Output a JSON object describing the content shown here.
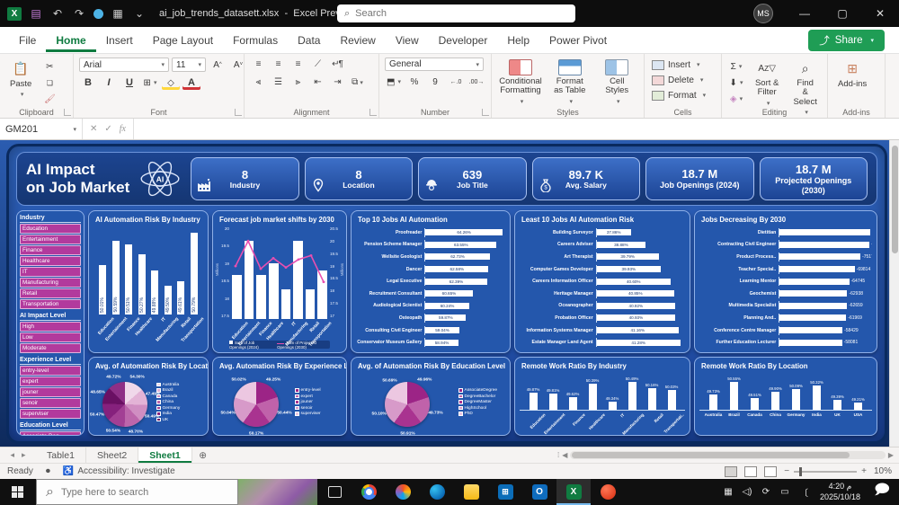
{
  "window": {
    "doc_title": "ai_job_trends_datasett.xlsx",
    "separator": "-",
    "app_title": "Excel Preview",
    "search_placeholder": "Search",
    "avatar_initials": "MS",
    "minimize": "—",
    "maximize": "▢",
    "close": "✕"
  },
  "menu": {
    "tabs": [
      "File",
      "Home",
      "Insert",
      "Page Layout",
      "Formulas",
      "Data",
      "Review",
      "View",
      "Developer",
      "Help",
      "Power Pivot"
    ],
    "active_tab": "Home",
    "share_label": "Share"
  },
  "ribbon": {
    "groups": [
      "Clipboard",
      "Font",
      "Alignment",
      "Number",
      "Styles",
      "Cells",
      "Editing",
      "Add-ins"
    ],
    "paste_label": "Paste",
    "font_name": "Arial",
    "font_size": "11",
    "bold_label": "B",
    "italic_label": "I",
    "underline_label": "U",
    "font_color_label": "A",
    "fill_label": "◇",
    "number_format": "General",
    "percent_label": "%",
    "comma_label": "9",
    "styles_buttons": [
      "Conditional Formatting",
      "Format as Table",
      "Cell Styles"
    ],
    "cells_buttons": [
      "Insert",
      "Delete",
      "Format"
    ],
    "autosum_label": "Σ",
    "editing_buttons": [
      "Sort & Filter",
      "Find & Select"
    ],
    "addins_label": "Add-ins"
  },
  "formula_bar": {
    "cell_ref": "GM201",
    "fx_label": "fx",
    "formula_value": ""
  },
  "dashboard": {
    "title_line1": "AI Impact",
    "title_line2": "on Job Market",
    "logo_text": "AI",
    "kpis": [
      {
        "value": "8",
        "label": "Industry",
        "icon": "industry-icon"
      },
      {
        "value": "8",
        "label": "Location",
        "icon": "location-icon"
      },
      {
        "value": "639",
        "label": "Job Title",
        "icon": "job-title-icon"
      },
      {
        "value": "89.7 K",
        "label": "Avg. Salary",
        "icon": "salary-icon"
      },
      {
        "value": "18.7 M",
        "label": "Job Openings (2024)",
        "icon": ""
      },
      {
        "value": "18.7 M",
        "label": "Projected Openings (2030)",
        "icon": ""
      }
    ],
    "slicers": [
      {
        "title": "Industry",
        "items": [
          "Education",
          "Entertainment",
          "Finance",
          "Healthcare",
          "IT",
          "Manufacturing",
          "Retail",
          "Transportation"
        ]
      },
      {
        "title": "AI Impact Level",
        "items": [
          "High",
          "Low",
          "Moderate"
        ]
      },
      {
        "title": "Experience Level",
        "items": [
          "entry-level",
          "expert",
          "jouner",
          "senoir",
          "superviser"
        ]
      },
      {
        "title": "Education Level",
        "items": [
          "Associate Deg...",
          "DegreeBachelor",
          "DegreeMaster",
          "High School",
          "PhD"
        ]
      }
    ]
  },
  "chart_data": [
    {
      "type": "bar",
      "title": "AI Automation Risk By Industry",
      "categories": [
        "Education",
        "Entertainment",
        "Finance",
        "Healthcare",
        "IT",
        "Manufacturing",
        "Retail",
        "Transportation"
      ],
      "values": [
        50.01,
        50.59,
        50.51,
        50.27,
        49.88,
        49.5,
        49.61,
        50.79
      ],
      "scale": {
        "min": 48.8,
        "max": 50.95
      },
      "bar_color": "#ffffff"
    },
    {
      "type": "combo",
      "title": "Forecast job market shifts by 2030",
      "categories": [
        "Education",
        "Entertainment",
        "Finance",
        "Healthcare",
        "IT",
        "Manufacturing",
        "Retail",
        "Transportation"
      ],
      "series": [
        {
          "name": "Sum of Job Openings (2024)",
          "kind": "bar",
          "values": [
            18.7,
            19.6,
            18.7,
            19.0,
            18.3,
            19.6,
            18.3,
            18.8
          ]
        },
        {
          "name": "Sum of Projected Openings (2030)",
          "kind": "line",
          "values": [
            19.0,
            19.95,
            18.9,
            19.3,
            18.95,
            19.25,
            19.4,
            18.4
          ]
        }
      ],
      "left_axis": {
        "label": "Millions",
        "ticks": [
          "20",
          "19.5",
          "19",
          "18.5",
          "18",
          "17.5"
        ],
        "min": 17.5,
        "max": 20
      },
      "right_axis": {
        "label": "Millions",
        "ticks": [
          "20.5",
          "20",
          "19.5",
          "19",
          "18.5",
          "18",
          "17.5",
          "17"
        ],
        "min": 17,
        "max": 20.5
      },
      "line_color": "#e84fb0"
    },
    {
      "type": "hbar",
      "title": "Top 10 Jobs AI Automation",
      "categories": [
        "Proofreader",
        "Pension Scheme Manager",
        "Wellsite Geologist",
        "Dancer",
        "Legal Executive",
        "Recruitment Consultant",
        "Audiological Scientist",
        "Osteopath",
        "Consulting Civil Engineer",
        "Conservator Museum Gallery"
      ],
      "values": [
        64.26,
        63.55,
        62.73,
        62.58,
        62.39,
        60.65,
        60.24,
        59.87,
        59.04,
        58.94
      ],
      "scale": {
        "min": 55,
        "max": 64.6
      }
    },
    {
      "type": "hbar",
      "title": "Least 10 Jobs AI Automation Risk",
      "categories": [
        "Building Surveyor",
        "Careers Adviser",
        "Art Therapist",
        "Computer Games Developer",
        "Careers Information Officer",
        "Heritage Manager",
        "Oceanographer",
        "Probation Officer",
        "Information Systems Manager",
        "Estate Manager Land Agent"
      ],
      "values": [
        37.86,
        38.88,
        39.79,
        39.93,
        40.6,
        40.85,
        40.92,
        40.93,
        41.16,
        41.28
      ],
      "scale": {
        "min": 35.5,
        "max": 41.6
      }
    },
    {
      "type": "hbar-neg",
      "title": "Jobs Decreasing By 2030",
      "categories": [
        "Dietitian",
        "Contracting Civil Engineer",
        "Product Process..",
        "Teacher Special..",
        "Learning Mentor",
        "Geochemist",
        "Multimedia Specialist",
        "Planning And..",
        "Conference Centre Manager",
        "Further Education Lecturer"
      ],
      "values": [
        -84183,
        -83619,
        -75178,
        -69814,
        -64745,
        -62938,
        -62659,
        -61969,
        -58429,
        -58081
      ],
      "scale": {
        "min": 0,
        "max": 86000
      }
    },
    {
      "type": "pie",
      "title": "Avg.  of Automation Risk By Location",
      "categories": [
        "Australia",
        "Brazil",
        "Canada",
        "China",
        "Germany",
        "India",
        "UK",
        "USA"
      ],
      "values": [
        54.3,
        47.49,
        50.49,
        48.7,
        50.54,
        50.47,
        48.65,
        49.72
      ],
      "colors": [
        "#f0d8ea",
        "#e3b3d6",
        "#d08ec2",
        "#bc66ab",
        "#a23f94",
        "#86217d",
        "#6a1063",
        "#8e2f86"
      ],
      "legend_max": 7
    },
    {
      "type": "pie",
      "title": "Avg. Automation Risk By Experience Level",
      "categories": [
        "entry-level",
        "expert",
        "jouner",
        "senoir",
        "superviser"
      ],
      "values": [
        49.25,
        50.44,
        50.17,
        50.04,
        50.02
      ],
      "colors": [
        "#9c2486",
        "#c062aa",
        "#a93390",
        "#d79ac9",
        "#ecc7e1"
      ],
      "legend_max": 5
    },
    {
      "type": "pie",
      "title": "Avg. of Automation Risk By Education Level",
      "categories": [
        "AssociateDegree",
        "DegreeBachelor",
        "DegreeMaster",
        "HighSchool",
        "PhD"
      ],
      "values": [
        49.96,
        49.73,
        50.91,
        50.1,
        50.69
      ],
      "colors": [
        "#9c2486",
        "#c062aa",
        "#a93390",
        "#d79ac9",
        "#ecc7e1"
      ],
      "legend_max": 5
    },
    {
      "type": "column",
      "title": "Remote Work Ratio By Industry",
      "categories": [
        "Education",
        "Entertainment",
        "Finance",
        "Healthcare",
        "IT",
        "Manufacturing",
        "Retail",
        "Transportati.."
      ],
      "values": [
        49.87,
        49.81,
        49.62,
        50.39,
        49.34,
        50.49,
        50.16,
        50.03
      ],
      "scale": {
        "min": 48.9,
        "max": 50.65
      },
      "rotate_cats": true
    },
    {
      "type": "column",
      "title": "Remote Work Ratio By Location",
      "categories": [
        "Australia",
        "Brazil",
        "Canada",
        "China",
        "Germany",
        "India",
        "UK",
        "USA"
      ],
      "values": [
        49.73,
        50.55,
        49.51,
        49.9,
        50.09,
        50.32,
        49.39,
        49.21
      ],
      "scale": {
        "min": 48.8,
        "max": 50.7
      },
      "rotate_cats": false
    }
  ],
  "sheet_tabs": {
    "items": [
      "Table1",
      "Sheet2",
      "Sheet1"
    ],
    "active": "Sheet1",
    "add_label": "+"
  },
  "status_bar": {
    "ready": "Ready",
    "accessibility": "Accessibility: Investigate",
    "zoom_level": "10%"
  },
  "taskbar": {
    "search_placeholder": "Type here to search",
    "apps": [
      "task-view",
      "chrome",
      "copilot",
      "edge",
      "file-explorer",
      "store",
      "outlook",
      "excel",
      "media-app"
    ],
    "active_app": "excel",
    "time": "4:20 م",
    "date": "2025/10/18"
  }
}
